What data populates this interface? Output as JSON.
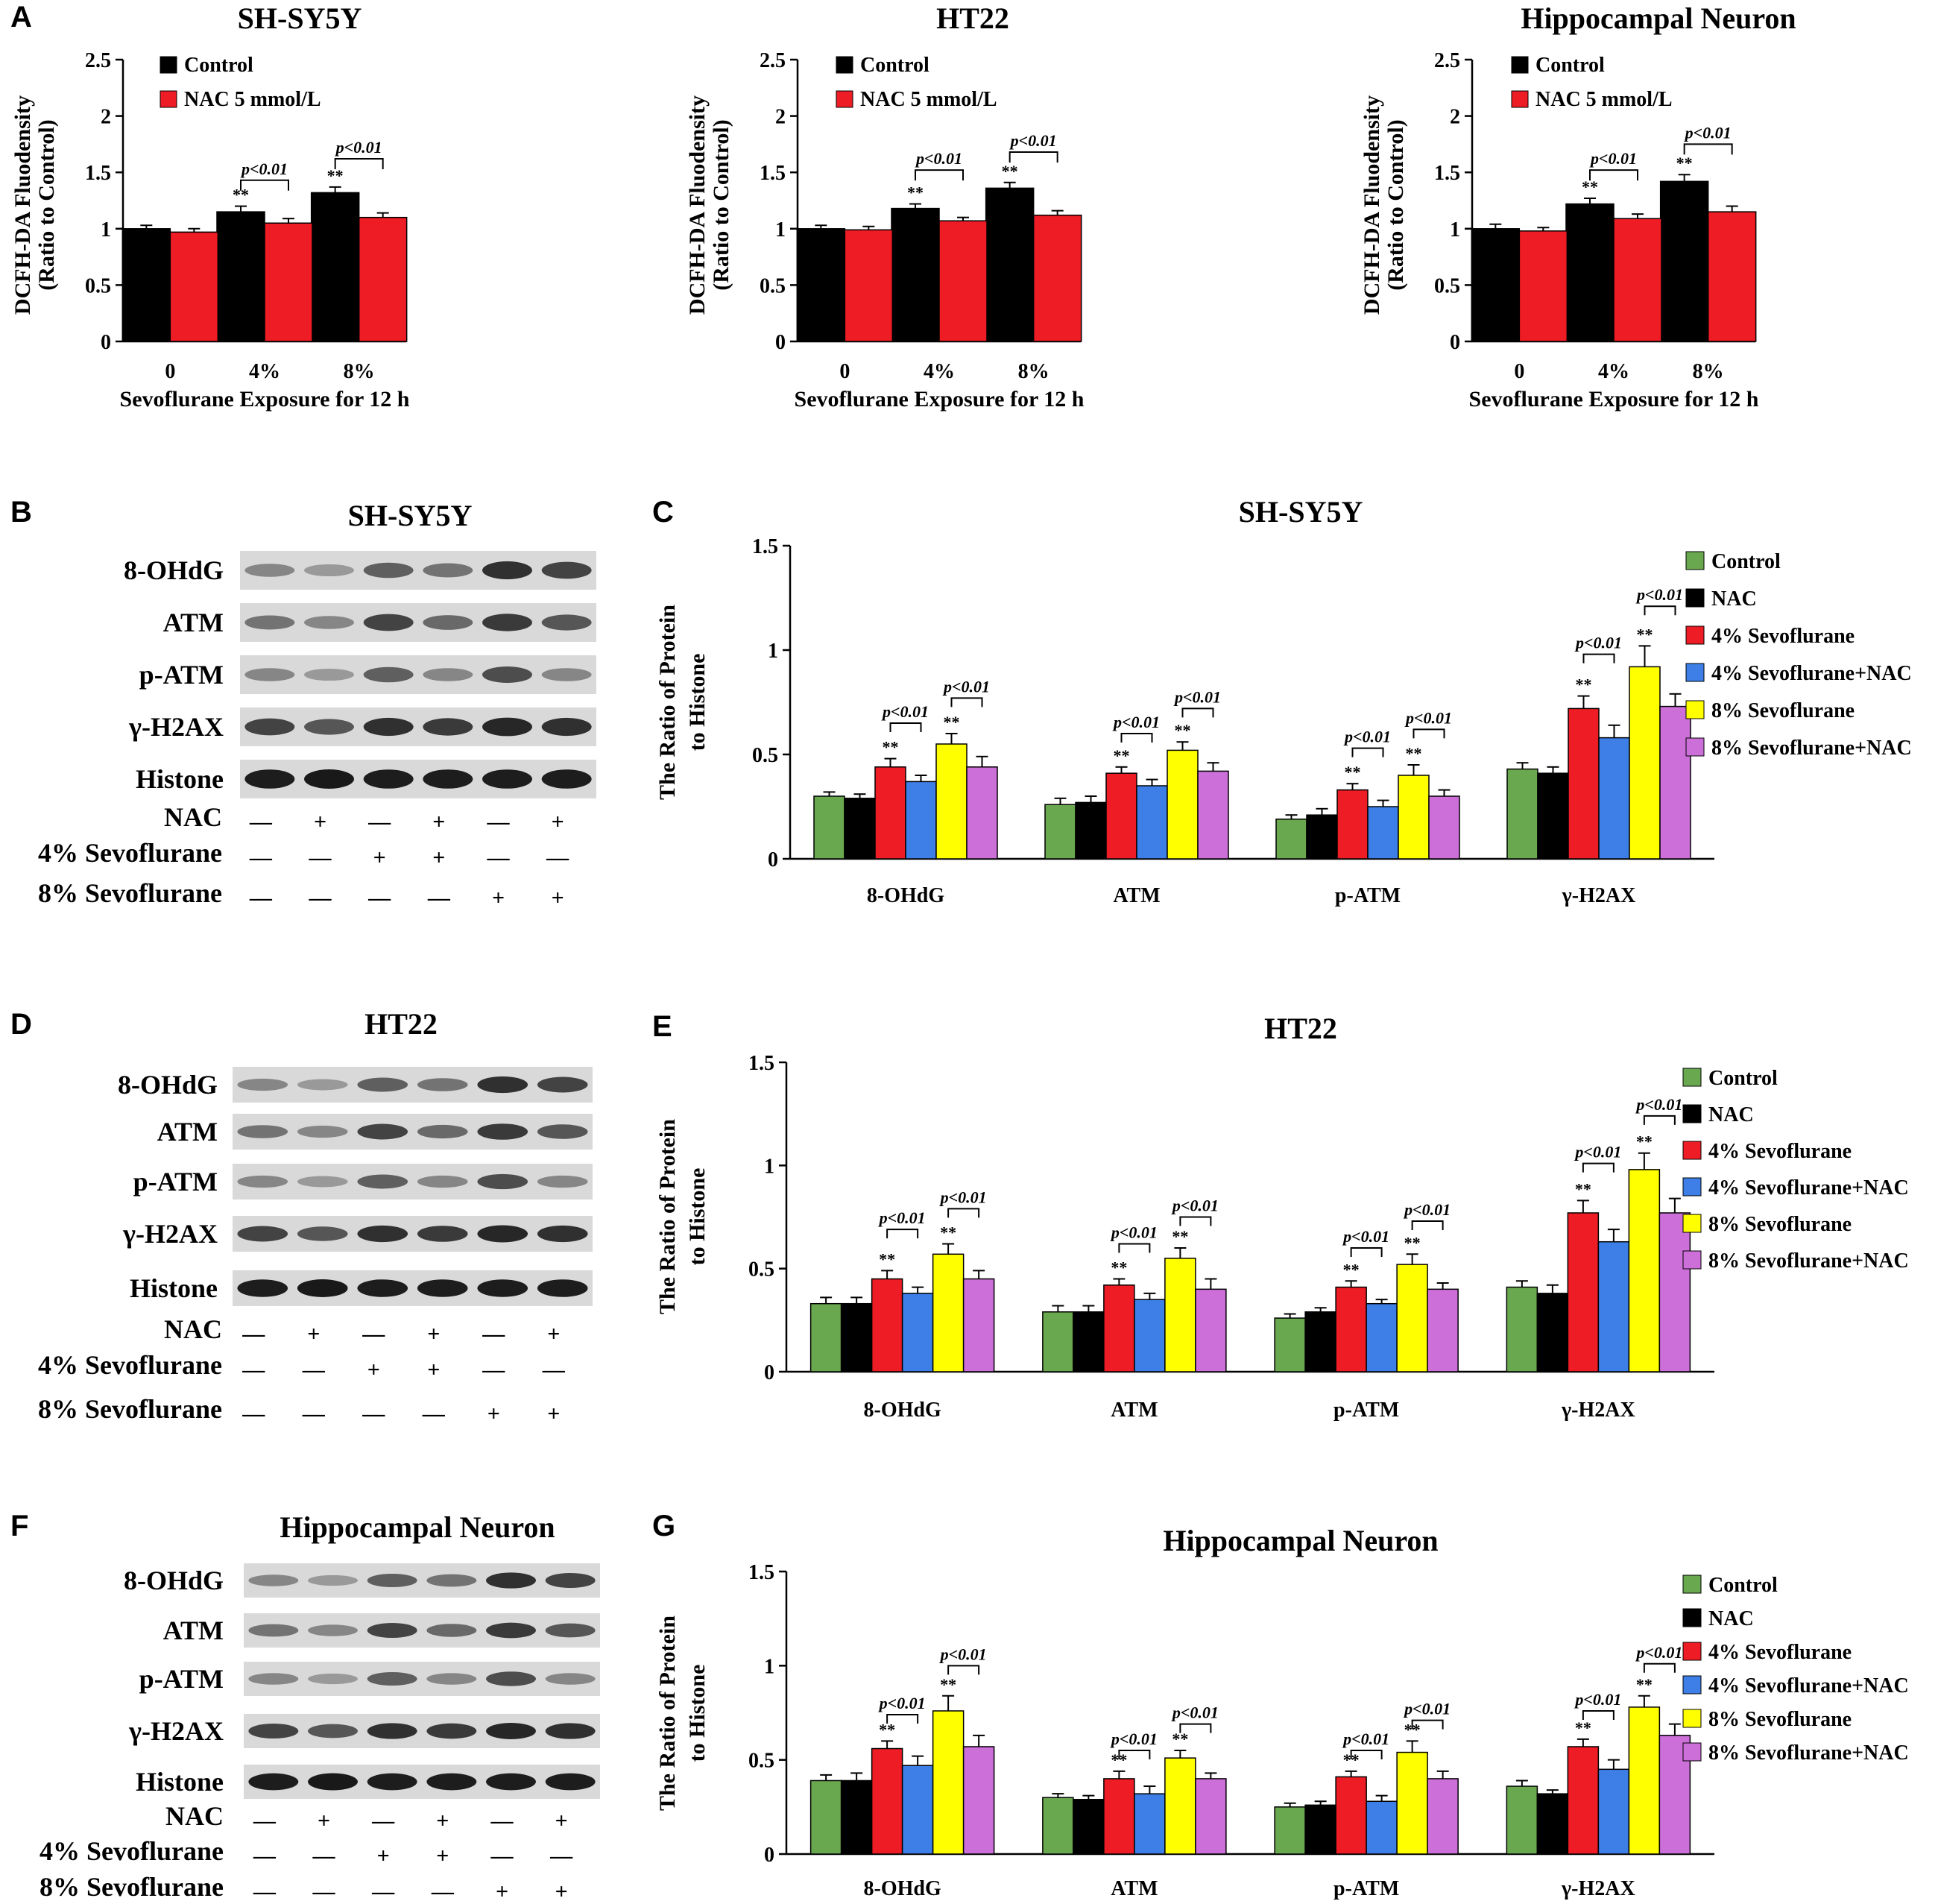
{
  "colors": {
    "control": "#000000",
    "nac_red": "#ee1c24",
    "green": "#6aa84f",
    "black": "#000000",
    "red": "#ee1c24",
    "blue": "#3d7fe6",
    "yellow": "#ffff00",
    "purple": "#cc6fd9"
  },
  "blots": [
    {
      "letter": "B",
      "title": "SH-SY5Y",
      "rows": [
        "8-OHdG",
        "ATM",
        "p-ATM",
        "γ-H2AX",
        "Histone"
      ],
      "treatments": [
        {
          "label": "NAC",
          "signs": [
            "—",
            "+",
            "—",
            "+",
            "—",
            "+"
          ]
        },
        {
          "label": "4% Sevoflurane",
          "signs": [
            "—",
            "—",
            "+",
            "+",
            "—",
            "—"
          ]
        },
        {
          "label": "8% Sevoflurane",
          "signs": [
            "—",
            "—",
            "—",
            "—",
            "+",
            "+"
          ]
        }
      ]
    },
    {
      "letter": "D",
      "title": "HT22",
      "rows": [
        "8-OHdG",
        "ATM",
        "p-ATM",
        "γ-H2AX",
        "Histone"
      ],
      "treatments": [
        {
          "label": "NAC",
          "signs": [
            "—",
            "+",
            "—",
            "+",
            "—",
            "+"
          ]
        },
        {
          "label": "4% Sevoflurane",
          "signs": [
            "—",
            "—",
            "+",
            "+",
            "—",
            "—"
          ]
        },
        {
          "label": "8% Sevoflurane",
          "signs": [
            "—",
            "—",
            "—",
            "—",
            "+",
            "+"
          ]
        }
      ]
    },
    {
      "letter": "F",
      "title": "Hippocampal Neuron",
      "rows": [
        "8-OHdG",
        "ATM",
        "p-ATM",
        "γ-H2AX",
        "Histone"
      ],
      "treatments": [
        {
          "label": "NAC",
          "signs": [
            "—",
            "+",
            "—",
            "+",
            "—",
            "+"
          ]
        },
        {
          "label": "4% Sevoflurane",
          "signs": [
            "—",
            "—",
            "+",
            "+",
            "—",
            "—"
          ]
        },
        {
          "label": "8% Sevoflurane",
          "signs": [
            "—",
            "—",
            "—",
            "—",
            "+",
            "+"
          ]
        }
      ]
    }
  ],
  "chart_data": [
    {
      "letter": "A",
      "type": "bar",
      "title": "SH-SY5Y",
      "xlabel": "Sevoflurane Exposure for 12 h",
      "ylabel": "DCFH-DA Fluodensity",
      "ylabel2": "(Ratio to Control)",
      "categories": [
        "0",
        "4%",
        "8%"
      ],
      "ylim": [
        0,
        2.5
      ],
      "yticks": [
        0,
        0.5,
        1,
        1.5,
        2,
        2.5
      ],
      "ytick_labels": [
        "0",
        "0.5",
        "1",
        "1.5",
        "2",
        "2.5"
      ],
      "series": [
        {
          "name": "Control",
          "color": "#000000",
          "values": [
            1.0,
            1.15,
            1.32
          ],
          "errors": [
            0.03,
            0.05,
            0.05
          ],
          "stars": [
            "",
            "**",
            "**"
          ]
        },
        {
          "name": "NAC 5 mmol/L",
          "color": "#ee1c24",
          "values": [
            0.97,
            1.05,
            1.1
          ],
          "errors": [
            0.03,
            0.04,
            0.04
          ],
          "stars": [
            "",
            "",
            ""
          ]
        }
      ],
      "sig": [
        {
          "category": 1,
          "label": "p<0.01",
          "y": 1.43
        },
        {
          "category": 2,
          "label": "p<0.01",
          "y": 1.62
        }
      ]
    },
    {
      "letter": "",
      "type": "bar",
      "title": "HT22",
      "xlabel": "Sevoflurane Exposure for 12 h",
      "ylabel": "DCFH-DA Fluodensity",
      "ylabel2": "(Ratio to Control)",
      "categories": [
        "0",
        "4%",
        "8%"
      ],
      "ylim": [
        0,
        2.5
      ],
      "yticks": [
        0,
        0.5,
        1,
        1.5,
        2,
        2.5
      ],
      "ytick_labels": [
        "0",
        "0.5",
        "1",
        "1.5",
        "2",
        "2.5"
      ],
      "series": [
        {
          "name": "Control",
          "color": "#000000",
          "values": [
            1.0,
            1.18,
            1.36
          ],
          "errors": [
            0.03,
            0.04,
            0.05
          ],
          "stars": [
            "",
            "**",
            "**"
          ]
        },
        {
          "name": "NAC 5 mmol/L",
          "color": "#ee1c24",
          "values": [
            0.99,
            1.07,
            1.12
          ],
          "errors": [
            0.03,
            0.03,
            0.04
          ],
          "stars": [
            "",
            "",
            ""
          ]
        }
      ],
      "sig": [
        {
          "category": 1,
          "label": "p<0.01",
          "y": 1.52
        },
        {
          "category": 2,
          "label": "p<0.01",
          "y": 1.68
        }
      ]
    },
    {
      "letter": "",
      "type": "bar",
      "title": "Hippocampal Neuron",
      "xlabel": "Sevoflurane Exposure for 12 h",
      "ylabel": "DCFH-DA Fluodensity",
      "ylabel2": "(Ratio to Control)",
      "categories": [
        "0",
        "4%",
        "8%"
      ],
      "ylim": [
        0,
        2.5
      ],
      "yticks": [
        0,
        0.5,
        1,
        1.5,
        2,
        2.5
      ],
      "ytick_labels": [
        "0",
        "0.5",
        "1",
        "1.5",
        "2",
        "2.5"
      ],
      "series": [
        {
          "name": "Control",
          "color": "#000000",
          "values": [
            1.0,
            1.22,
            1.42
          ],
          "errors": [
            0.04,
            0.05,
            0.06
          ],
          "stars": [
            "",
            "**",
            "**"
          ]
        },
        {
          "name": "NAC 5 mmol/L",
          "color": "#ee1c24",
          "values": [
            0.98,
            1.09,
            1.15
          ],
          "errors": [
            0.03,
            0.04,
            0.05
          ],
          "stars": [
            "",
            "",
            ""
          ]
        }
      ],
      "sig": [
        {
          "category": 1,
          "label": "p<0.01",
          "y": 1.52
        },
        {
          "category": 2,
          "label": "p<0.01",
          "y": 1.75
        }
      ]
    },
    {
      "letter": "C",
      "type": "bar",
      "title": "SH-SY5Y",
      "xlabel": "",
      "ylabel": "The Ratio of Protein",
      "ylabel2": "to Histone",
      "categories": [
        "8-OHdG",
        "ATM",
        "p-ATM",
        "γ-H2AX"
      ],
      "ylim": [
        0,
        1.5
      ],
      "yticks": [
        0,
        0.5,
        1,
        1.5
      ],
      "ytick_labels": [
        "0",
        "0.5",
        "1",
        "1.5"
      ],
      "series": [
        {
          "name": "Control",
          "color": "#6aa84f",
          "values": [
            0.3,
            0.26,
            0.19,
            0.43
          ],
          "errors": [
            0.02,
            0.03,
            0.02,
            0.03
          ],
          "stars": [
            "",
            "",
            "",
            ""
          ]
        },
        {
          "name": "NAC",
          "color": "#000000",
          "values": [
            0.29,
            0.27,
            0.21,
            0.41
          ],
          "errors": [
            0.02,
            0.03,
            0.03,
            0.03
          ],
          "stars": [
            "",
            "",
            "",
            ""
          ]
        },
        {
          "name": "4% Sevoflurane",
          "color": "#ee1c24",
          "values": [
            0.44,
            0.41,
            0.33,
            0.72
          ],
          "errors": [
            0.04,
            0.03,
            0.03,
            0.06
          ],
          "stars": [
            "**",
            "**",
            "**",
            "**"
          ]
        },
        {
          "name": "4% Sevoflurane+NAC",
          "color": "#3d7fe6",
          "values": [
            0.37,
            0.35,
            0.25,
            0.58
          ],
          "errors": [
            0.03,
            0.03,
            0.03,
            0.06
          ],
          "stars": [
            "",
            "",
            "",
            ""
          ]
        },
        {
          "name": "8% Sevoflurane",
          "color": "#ffff00",
          "values": [
            0.55,
            0.52,
            0.4,
            0.92
          ],
          "errors": [
            0.05,
            0.04,
            0.05,
            0.1
          ],
          "stars": [
            "**",
            "**",
            "**",
            "**"
          ]
        },
        {
          "name": "8% Sevoflurane+NAC",
          "color": "#cc6fd9",
          "values": [
            0.44,
            0.42,
            0.3,
            0.73
          ],
          "errors": [
            0.05,
            0.04,
            0.03,
            0.06
          ],
          "stars": [
            "",
            "",
            "",
            ""
          ]
        }
      ],
      "sig": [
        {
          "category": 0,
          "from": 2,
          "to": 3,
          "label": "p<0.01",
          "y": 0.65
        },
        {
          "category": 0,
          "from": 4,
          "to": 5,
          "label": "p<0.01",
          "y": 0.77
        },
        {
          "category": 1,
          "from": 2,
          "to": 3,
          "label": "p<0.01",
          "y": 0.6
        },
        {
          "category": 1,
          "from": 4,
          "to": 5,
          "label": "p<0.01",
          "y": 0.72
        },
        {
          "category": 2,
          "from": 2,
          "to": 3,
          "label": "p<0.01",
          "y": 0.53
        },
        {
          "category": 2,
          "from": 4,
          "to": 5,
          "label": "p<0.01",
          "y": 0.62
        },
        {
          "category": 3,
          "from": 2,
          "to": 3,
          "label": "p<0.01",
          "y": 0.98
        },
        {
          "category": 3,
          "from": 4,
          "to": 5,
          "label": "p<0.01",
          "y": 1.21
        }
      ]
    },
    {
      "letter": "E",
      "type": "bar",
      "title": "HT22",
      "xlabel": "",
      "ylabel": "The Ratio of Protein",
      "ylabel2": "to Histone",
      "categories": [
        "8-OHdG",
        "ATM",
        "p-ATM",
        "γ-H2AX"
      ],
      "ylim": [
        0,
        1.5
      ],
      "yticks": [
        0,
        0.5,
        1,
        1.5
      ],
      "ytick_labels": [
        "0",
        "0.5",
        "1",
        "1.5"
      ],
      "series": [
        {
          "name": "Control",
          "color": "#6aa84f",
          "values": [
            0.33,
            0.29,
            0.26,
            0.41
          ],
          "errors": [
            0.03,
            0.03,
            0.02,
            0.03
          ],
          "stars": [
            "",
            "",
            "",
            ""
          ]
        },
        {
          "name": "NAC",
          "color": "#000000",
          "values": [
            0.33,
            0.29,
            0.29,
            0.38
          ],
          "errors": [
            0.03,
            0.03,
            0.02,
            0.04
          ],
          "stars": [
            "",
            "",
            "",
            ""
          ]
        },
        {
          "name": "4% Sevoflurane",
          "color": "#ee1c24",
          "values": [
            0.45,
            0.42,
            0.41,
            0.77
          ],
          "errors": [
            0.04,
            0.03,
            0.03,
            0.06
          ],
          "stars": [
            "**",
            "**",
            "**",
            "**"
          ]
        },
        {
          "name": "4% Sevoflurane+NAC",
          "color": "#3d7fe6",
          "values": [
            0.38,
            0.35,
            0.33,
            0.63
          ],
          "errors": [
            0.03,
            0.03,
            0.02,
            0.06
          ],
          "stars": [
            "",
            "",
            "",
            ""
          ]
        },
        {
          "name": "8% Sevoflurane",
          "color": "#ffff00",
          "values": [
            0.57,
            0.55,
            0.52,
            0.98
          ],
          "errors": [
            0.05,
            0.05,
            0.05,
            0.08
          ],
          "stars": [
            "**",
            "**",
            "**",
            "**"
          ]
        },
        {
          "name": "8% Sevoflurane+NAC",
          "color": "#cc6fd9",
          "values": [
            0.45,
            0.4,
            0.4,
            0.77
          ],
          "errors": [
            0.04,
            0.05,
            0.03,
            0.07
          ],
          "stars": [
            "",
            "",
            "",
            ""
          ]
        }
      ],
      "sig": [
        {
          "category": 0,
          "from": 2,
          "to": 3,
          "label": "p<0.01",
          "y": 0.69
        },
        {
          "category": 0,
          "from": 4,
          "to": 5,
          "label": "p<0.01",
          "y": 0.79
        },
        {
          "category": 1,
          "from": 2,
          "to": 3,
          "label": "p<0.01",
          "y": 0.62
        },
        {
          "category": 1,
          "from": 4,
          "to": 5,
          "label": "p<0.01",
          "y": 0.75
        },
        {
          "category": 2,
          "from": 2,
          "to": 3,
          "label": "p<0.01",
          "y": 0.6
        },
        {
          "category": 2,
          "from": 4,
          "to": 5,
          "label": "p<0.01",
          "y": 0.73
        },
        {
          "category": 3,
          "from": 2,
          "to": 3,
          "label": "p<0.01",
          "y": 1.01
        },
        {
          "category": 3,
          "from": 4,
          "to": 5,
          "label": "p<0.01",
          "y": 1.24
        }
      ]
    },
    {
      "letter": "G",
      "type": "bar",
      "title": "Hippocampal Neuron",
      "xlabel": "",
      "ylabel": "The Ratio of Protein",
      "ylabel2": "to Histone",
      "categories": [
        "8-OHdG",
        "ATM",
        "p-ATM",
        "γ-H2AX"
      ],
      "ylim": [
        0,
        1.5
      ],
      "yticks": [
        0,
        0.5,
        1,
        1.5
      ],
      "ytick_labels": [
        "0",
        "0.5",
        "1",
        "1.5"
      ],
      "series": [
        {
          "name": "Control",
          "color": "#6aa84f",
          "values": [
            0.39,
            0.3,
            0.25,
            0.36
          ],
          "errors": [
            0.03,
            0.02,
            0.02,
            0.03
          ],
          "stars": [
            "",
            "",
            "",
            ""
          ]
        },
        {
          "name": "NAC",
          "color": "#000000",
          "values": [
            0.39,
            0.29,
            0.26,
            0.32
          ],
          "errors": [
            0.04,
            0.02,
            0.02,
            0.02
          ],
          "stars": [
            "",
            "",
            "",
            ""
          ]
        },
        {
          "name": "4% Sevoflurane",
          "color": "#ee1c24",
          "values": [
            0.56,
            0.4,
            0.41,
            0.57
          ],
          "errors": [
            0.04,
            0.04,
            0.03,
            0.04
          ],
          "stars": [
            "**",
            "**",
            "**",
            "**"
          ]
        },
        {
          "name": "4% Sevoflurane+NAC",
          "color": "#3d7fe6",
          "values": [
            0.47,
            0.32,
            0.28,
            0.45
          ],
          "errors": [
            0.05,
            0.04,
            0.03,
            0.05
          ],
          "stars": [
            "",
            "",
            "",
            ""
          ]
        },
        {
          "name": "8% Sevoflurane",
          "color": "#ffff00",
          "values": [
            0.76,
            0.51,
            0.54,
            0.78
          ],
          "errors": [
            0.08,
            0.04,
            0.06,
            0.06
          ],
          "stars": [
            "**",
            "**",
            "**",
            "**"
          ]
        },
        {
          "name": "8% Sevoflurane+NAC",
          "color": "#cc6fd9",
          "values": [
            0.57,
            0.4,
            0.4,
            0.63
          ],
          "errors": [
            0.06,
            0.03,
            0.04,
            0.06
          ],
          "stars": [
            "",
            "",
            "",
            ""
          ]
        }
      ],
      "sig": [
        {
          "category": 0,
          "from": 2,
          "to": 3,
          "label": "p<0.01",
          "y": 0.74
        },
        {
          "category": 0,
          "from": 4,
          "to": 5,
          "label": "p<0.01",
          "y": 1.0
        },
        {
          "category": 1,
          "from": 2,
          "to": 3,
          "label": "p<0.01",
          "y": 0.55
        },
        {
          "category": 1,
          "from": 4,
          "to": 5,
          "label": "p<0.01",
          "y": 0.69
        },
        {
          "category": 2,
          "from": 2,
          "to": 3,
          "label": "p<0.01",
          "y": 0.55
        },
        {
          "category": 2,
          "from": 4,
          "to": 5,
          "label": "p<0.01",
          "y": 0.71
        },
        {
          "category": 3,
          "from": 2,
          "to": 3,
          "label": "p<0.01",
          "y": 0.76
        },
        {
          "category": 3,
          "from": 4,
          "to": 5,
          "label": "p<0.01",
          "y": 1.01
        }
      ]
    }
  ]
}
